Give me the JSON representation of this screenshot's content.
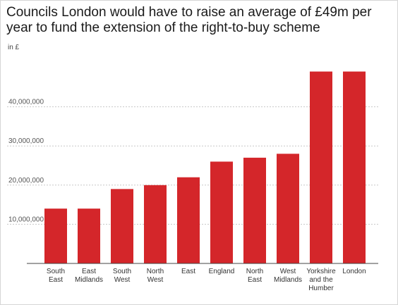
{
  "title": "Councils London would have to raise an average of £49m per year to fund the extension of the right-to-buy scheme",
  "unit_label": "in £",
  "colors": {
    "bar": "#d4262a",
    "grid": "#c8c8c8",
    "axis": "#444444"
  },
  "chart_data": {
    "type": "bar",
    "title": "Councils London would have to raise an average of £49m per year to fund the extension of the right-to-buy scheme",
    "ylabel": "in £",
    "xlabel": "",
    "categories": [
      [
        "South",
        "East"
      ],
      [
        "East",
        "Midlands"
      ],
      [
        "South",
        "West"
      ],
      [
        "North",
        "West"
      ],
      [
        "East"
      ],
      [
        "England"
      ],
      [
        "North",
        "East"
      ],
      [
        "West",
        "Midlands"
      ],
      [
        "Yorkshire",
        "and the",
        "Humber"
      ],
      [
        "London"
      ]
    ],
    "values": [
      14000000,
      14000000,
      19000000,
      20000000,
      22000000,
      26000000,
      27000000,
      28000000,
      49000000,
      49000000
    ],
    "yticks": [
      10000000,
      20000000,
      30000000,
      40000000
    ],
    "ytick_labels": [
      "10,000,000",
      "20,000,000",
      "30,000,000",
      "40,000,000"
    ],
    "ylim": [
      0,
      50000000
    ],
    "grid": true,
    "legend": "none"
  }
}
